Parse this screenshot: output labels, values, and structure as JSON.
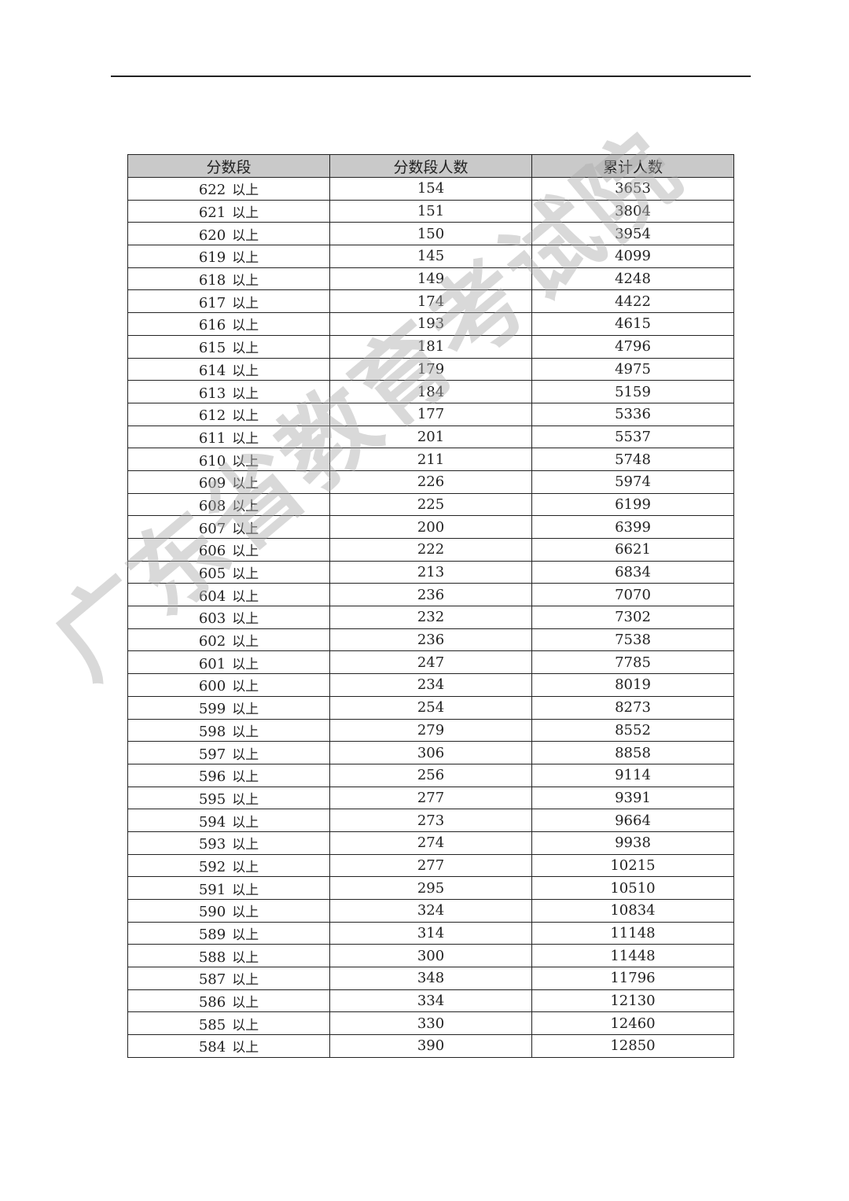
{
  "watermark": "广东省教育考试院",
  "table": {
    "headers": [
      "分数段",
      "分数段人数",
      "累计人数"
    ],
    "suffix": "以上",
    "rows": [
      [
        "622",
        "154",
        "3653"
      ],
      [
        "621",
        "151",
        "3804"
      ],
      [
        "620",
        "150",
        "3954"
      ],
      [
        "619",
        "145",
        "4099"
      ],
      [
        "618",
        "149",
        "4248"
      ],
      [
        "617",
        "174",
        "4422"
      ],
      [
        "616",
        "193",
        "4615"
      ],
      [
        "615",
        "181",
        "4796"
      ],
      [
        "614",
        "179",
        "4975"
      ],
      [
        "613",
        "184",
        "5159"
      ],
      [
        "612",
        "177",
        "5336"
      ],
      [
        "611",
        "201",
        "5537"
      ],
      [
        "610",
        "211",
        "5748"
      ],
      [
        "609",
        "226",
        "5974"
      ],
      [
        "608",
        "225",
        "6199"
      ],
      [
        "607",
        "200",
        "6399"
      ],
      [
        "606",
        "222",
        "6621"
      ],
      [
        "605",
        "213",
        "6834"
      ],
      [
        "604",
        "236",
        "7070"
      ],
      [
        "603",
        "232",
        "7302"
      ],
      [
        "602",
        "236",
        "7538"
      ],
      [
        "601",
        "247",
        "7785"
      ],
      [
        "600",
        "234",
        "8019"
      ],
      [
        "599",
        "254",
        "8273"
      ],
      [
        "598",
        "279",
        "8552"
      ],
      [
        "597",
        "306",
        "8858"
      ],
      [
        "596",
        "256",
        "9114"
      ],
      [
        "595",
        "277",
        "9391"
      ],
      [
        "594",
        "273",
        "9664"
      ],
      [
        "593",
        "274",
        "9938"
      ],
      [
        "592",
        "277",
        "10215"
      ],
      [
        "591",
        "295",
        "10510"
      ],
      [
        "590",
        "324",
        "10834"
      ],
      [
        "589",
        "314",
        "11148"
      ],
      [
        "588",
        "300",
        "11448"
      ],
      [
        "587",
        "348",
        "11796"
      ],
      [
        "586",
        "334",
        "12130"
      ],
      [
        "585",
        "330",
        "12460"
      ],
      [
        "584",
        "390",
        "12850"
      ]
    ]
  }
}
